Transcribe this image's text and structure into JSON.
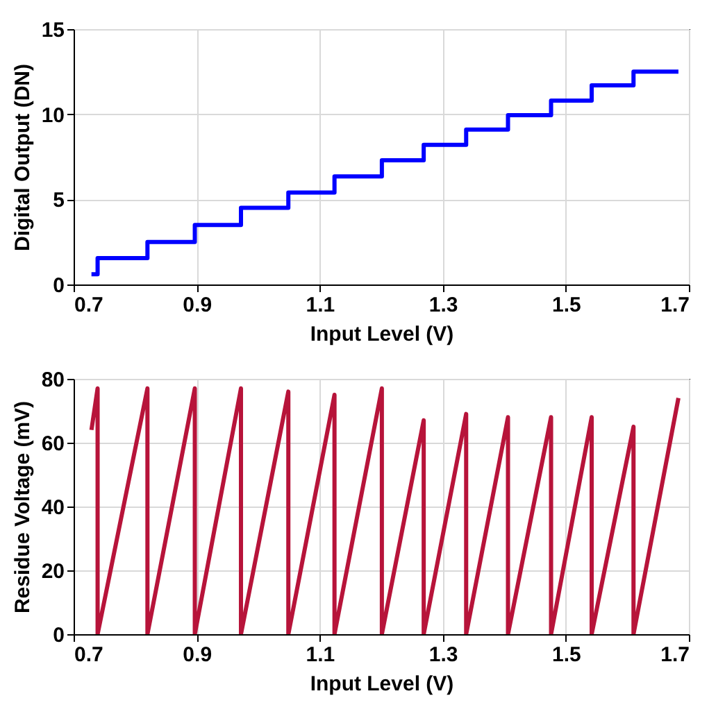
{
  "chart_data": [
    {
      "type": "step",
      "xlabel": "Input Level (V)",
      "ylabel": "Digital Output (DN)",
      "xlim": [
        0.7,
        1.7
      ],
      "xticks": [
        0.7,
        0.9,
        1.1,
        1.3,
        1.5,
        1.7
      ],
      "ylim": [
        0,
        15
      ],
      "yticks": [
        0,
        5,
        10,
        15
      ],
      "grid": true,
      "series": [
        {
          "color": "#0000ff",
          "x": [
            0.729,
            0.739,
            0.82,
            0.897,
            0.972,
            1.049,
            1.124,
            1.201,
            1.269,
            1.338,
            1.406,
            1.476,
            1.542,
            1.61,
            1.683
          ],
          "values": [
            0.6,
            1.55,
            2.5,
            3.5,
            4.5,
            5.4,
            6.35,
            7.3,
            8.2,
            9.1,
            9.95,
            10.8,
            11.7,
            12.5,
            12.5
          ]
        }
      ]
    },
    {
      "type": "line",
      "xlabel": "Input Level (V)",
      "ylabel": "Residue Voltage (mV)",
      "xlim": [
        0.7,
        1.7
      ],
      "xticks": [
        0.7,
        0.9,
        1.1,
        1.3,
        1.5,
        1.7
      ],
      "ylim": [
        0,
        80
      ],
      "yticks": [
        0,
        20,
        40,
        60,
        80
      ],
      "grid": true,
      "series": [
        {
          "color": "#b7143a",
          "x": [
            0.729,
            0.739,
            0.739,
            0.82,
            0.82,
            0.897,
            0.897,
            0.972,
            0.972,
            1.049,
            1.049,
            1.124,
            1.124,
            1.201,
            1.201,
            1.269,
            1.269,
            1.338,
            1.338,
            1.406,
            1.406,
            1.476,
            1.476,
            1.542,
            1.542,
            1.61,
            1.61,
            1.683
          ],
          "values": [
            64,
            77,
            0,
            77,
            0,
            77,
            0,
            77,
            0,
            76,
            0,
            75,
            0,
            77,
            0,
            67,
            0,
            69,
            0,
            68,
            0,
            68,
            0,
            68,
            0,
            65,
            0,
            74
          ]
        }
      ]
    }
  ]
}
